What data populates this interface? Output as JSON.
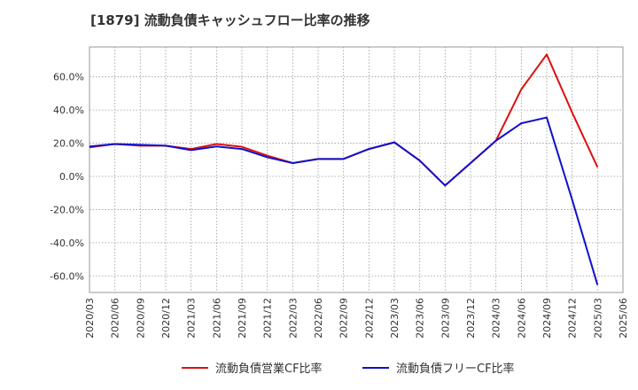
{
  "chart_data": {
    "type": "line",
    "title": "[1879]  流動負債キャッシュフロー比率の推移",
    "xlabel": "",
    "ylabel": "",
    "ylim": [
      -70,
      78
    ],
    "yticks": [
      {
        "value": 60,
        "label": "60.0%"
      },
      {
        "value": 40,
        "label": "40.0%"
      },
      {
        "value": 20,
        "label": "20.0%"
      },
      {
        "value": 0,
        "label": "0.0%"
      },
      {
        "value": -20,
        "label": "-20.0%"
      },
      {
        "value": -40,
        "label": "-40.0%"
      },
      {
        "value": -60,
        "label": "-60.0%"
      }
    ],
    "x": [
      "2020/03",
      "2020/06",
      "2020/09",
      "2020/12",
      "2021/03",
      "2021/06",
      "2021/09",
      "2021/12",
      "2022/03",
      "2022/06",
      "2022/09",
      "2022/12",
      "2023/03",
      "2023/06",
      "2023/09",
      "2023/12",
      "2024/03",
      "2024/06",
      "2024/09",
      "2024/12",
      "2025/03",
      "2025/06"
    ],
    "grid": true,
    "legend_position": "bottom",
    "series": [
      {
        "name": "流動負債営業CF比率",
        "color": "#dd1111",
        "values": [
          17.5,
          19.5,
          18.5,
          18.5,
          16.5,
          19.5,
          17.8,
          12.5,
          8,
          10.5,
          10.5,
          16.5,
          20.5,
          9.5,
          -5.5,
          8,
          21.5,
          52.5,
          73.5,
          38.5,
          5.5,
          null
        ]
      },
      {
        "name": "流動負債フリーCF比率",
        "color": "#1111cc",
        "values": [
          18,
          19.5,
          19,
          18.5,
          15.8,
          18,
          16.5,
          11.5,
          8,
          10.5,
          10.5,
          16.5,
          20.5,
          9.5,
          -5.5,
          8,
          21.5,
          32,
          35.5,
          -14,
          -65.5,
          null
        ]
      }
    ]
  }
}
